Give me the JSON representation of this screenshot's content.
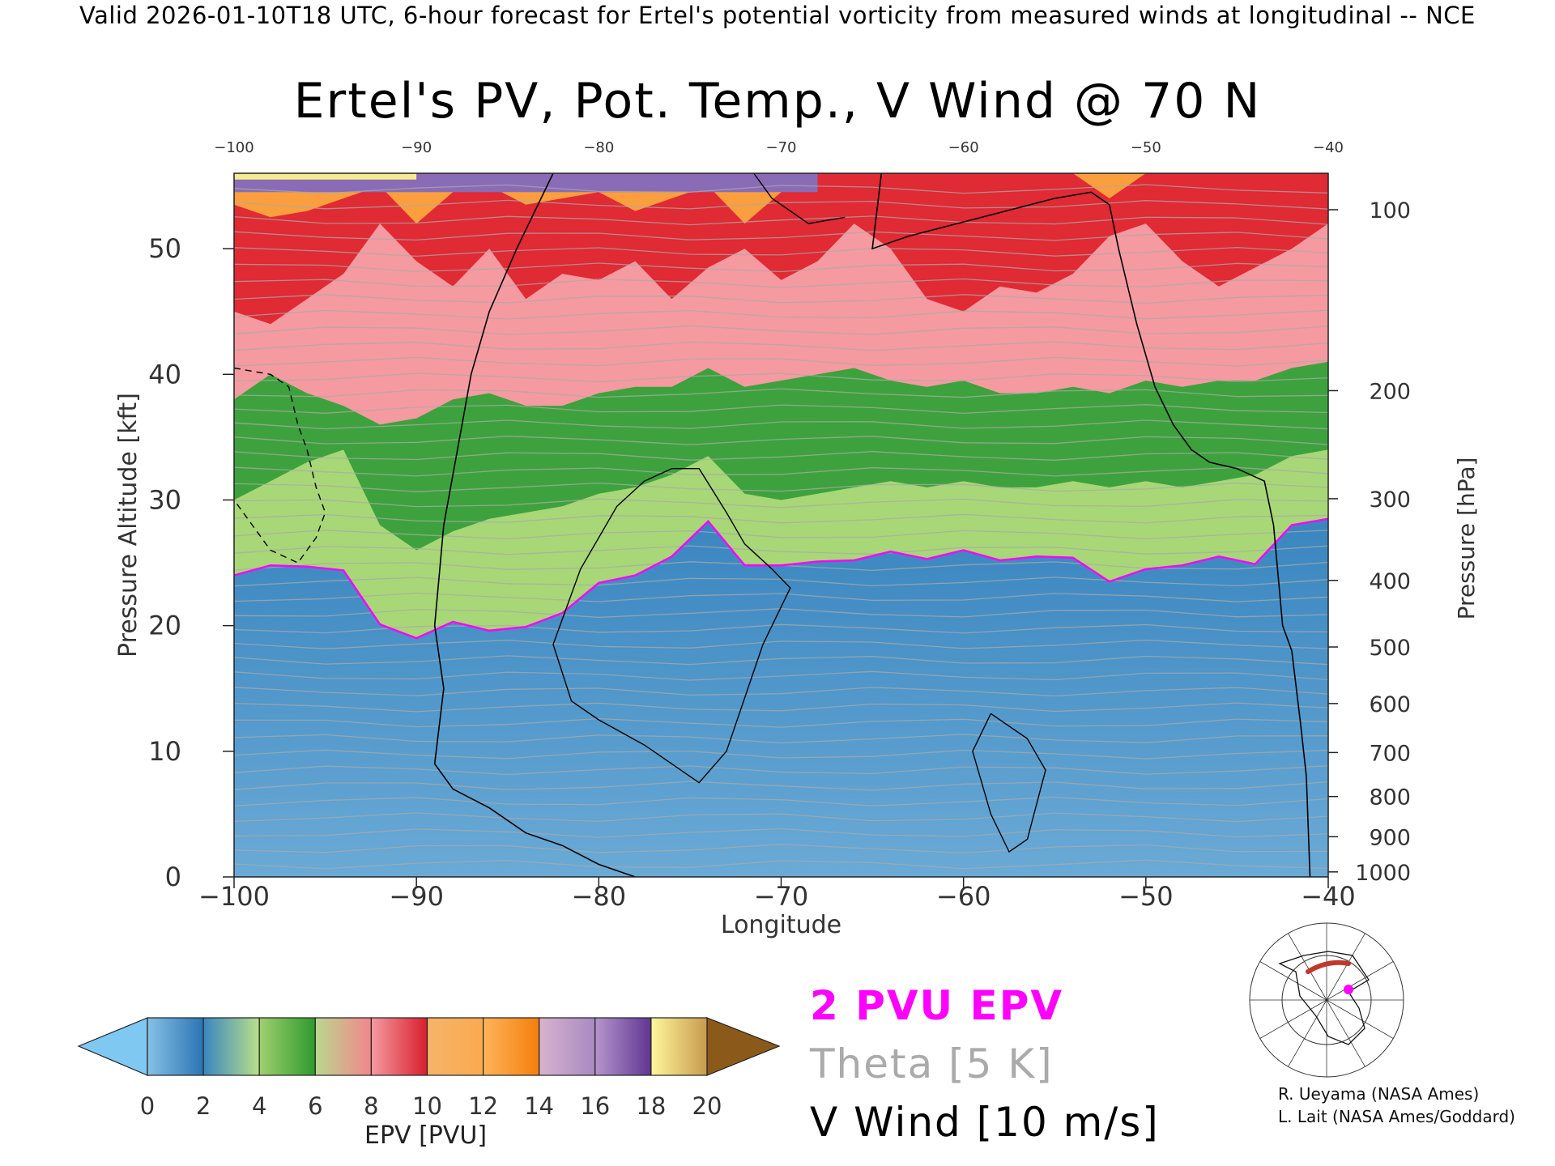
{
  "header": {
    "valid_text": "Valid 2026-01-10T18 UTC, 6-hour forecast for Ertel's potential vorticity from measured winds at longitudinal -- NCE"
  },
  "chart_data": {
    "type": "heatmap",
    "title": "Ertel's PV, Pot. Temp., V Wind @ 70 N",
    "xlabel": "Longitude",
    "ylabel": "Pressure Altitude [kft]",
    "y2label": "Pressure [hPa]",
    "xlim": [
      -100,
      -40
    ],
    "ylim": [
      0,
      56
    ],
    "x_ticks": [
      "−100",
      "−90",
      "−80",
      "−70",
      "−60",
      "−50",
      "−40"
    ],
    "x_tick_values": [
      -100,
      -90,
      -80,
      -70,
      -60,
      -50,
      -40
    ],
    "top_ticks": [
      "−100",
      "−90",
      "−80",
      "−70",
      "−60",
      "−50",
      "−40"
    ],
    "y_ticks": [
      "0",
      "10",
      "20",
      "30",
      "40",
      "50"
    ],
    "y_tick_values": [
      0,
      10,
      20,
      30,
      40,
      50
    ],
    "pressure_ticks": [
      {
        "label": "100",
        "kft": 53.1
      },
      {
        "label": "200",
        "kft": 38.7
      },
      {
        "label": "300",
        "kft": 30.1
      },
      {
        "label": "400",
        "kft": 23.6
      },
      {
        "label": "500",
        "kft": 18.3
      },
      {
        "label": "600",
        "kft": 13.8
      },
      {
        "label": "700",
        "kft": 9.9
      },
      {
        "label": "800",
        "kft": 6.4
      },
      {
        "label": "900",
        "kft": 3.2
      },
      {
        "label": "1000",
        "kft": 0.4
      }
    ],
    "epv_levels_kft": {
      "lon": [
        -100,
        -98,
        -96,
        -94,
        -92,
        -90,
        -88,
        -86,
        -84,
        -82,
        -80,
        -78,
        -76,
        -74,
        -72,
        -70,
        -68,
        -66,
        -64,
        -62,
        -60,
        -58,
        -56,
        -54,
        -52,
        -50,
        -48,
        -46,
        -44,
        -42,
        -40
      ],
      "pvu2": [
        24.0,
        24.8,
        24.7,
        24.4,
        20.1,
        19.0,
        20.3,
        19.6,
        19.9,
        21.0,
        23.4,
        24.0,
        25.5,
        28.3,
        24.8,
        24.8,
        25.1,
        25.2,
        25.9,
        25.3,
        26.0,
        25.2,
        25.5,
        25.4,
        23.5,
        24.5,
        24.8,
        25.5,
        24.9,
        28.0,
        28.5
      ],
      "pvu4": [
        30.0,
        31.5,
        33.0,
        34.0,
        28.0,
        26.0,
        27.5,
        28.5,
        29.0,
        29.5,
        30.5,
        31.0,
        32.0,
        33.5,
        30.5,
        30.0,
        30.5,
        31.0,
        31.5,
        31.0,
        31.5,
        31.0,
        31.0,
        31.5,
        31.0,
        31.5,
        31.0,
        31.5,
        32.0,
        33.5,
        34.0
      ],
      "pvu8": [
        38.0,
        40.0,
        38.5,
        37.5,
        36.0,
        36.5,
        38.0,
        38.5,
        37.5,
        37.5,
        38.5,
        39.0,
        39.0,
        40.5,
        39.0,
        39.5,
        40.0,
        40.5,
        39.5,
        39.0,
        39.5,
        38.5,
        38.5,
        39.0,
        38.5,
        39.5,
        39.0,
        39.5,
        39.5,
        40.5,
        41.0
      ],
      "pvu12": [
        45.0,
        44.0,
        46.0,
        48.0,
        52.0,
        49.0,
        47.0,
        50.0,
        46.0,
        48.0,
        47.5,
        49.0,
        46.0,
        48.5,
        50.0,
        47.5,
        49.0,
        52.0,
        50.0,
        46.0,
        45.0,
        47.0,
        46.5,
        48.0,
        51.0,
        52.0,
        49.0,
        47.0,
        48.5,
        50.0,
        52.0
      ],
      "pvu16": [
        53.5,
        52.5,
        53.0,
        54.0,
        55.0,
        52.0,
        54.5,
        55.0,
        53.5,
        54.0,
        54.5,
        53.0,
        54.0,
        55.0,
        52.0,
        54.5,
        56.0,
        56.0,
        56.0,
        56.0,
        56.0,
        56.0,
        56.0,
        56.0,
        54.0,
        56.0,
        56.0,
        56.0,
        56.0,
        56.0,
        56.0
      ]
    },
    "vwind_zero_contour": {
      "lon": [
        -82.5,
        -84.5,
        -86.0,
        -87.0,
        -87.5,
        -88.0,
        -88.5,
        -89.0,
        -88.5,
        -89.0,
        -88.0,
        -86.0,
        -84.0,
        -82.0,
        -80.0,
        -78.0
      ],
      "kft": [
        56.0,
        50.0,
        45.0,
        40.0,
        36.0,
        32.0,
        28.0,
        20.0,
        15.0,
        9.0,
        7.0,
        5.5,
        3.5,
        2.5,
        1.0,
        0.0
      ]
    },
    "vwind_zero_contour_east": {
      "lon": [
        -64.5,
        -65.0,
        -63.0,
        -55.0,
        -53.0,
        -52.0,
        -51.5,
        -50.5,
        -49.5,
        -48.5,
        -47.5,
        -46.5,
        -45.0,
        -43.5,
        -43.0,
        -42.5,
        -42.0,
        -41.5,
        -41.2,
        -41.0
      ],
      "kft": [
        56.0,
        50.0,
        51.0,
        54.0,
        54.5,
        53.5,
        50.0,
        44.0,
        39.0,
        36.0,
        34.0,
        33.0,
        32.5,
        31.5,
        28.0,
        20.0,
        18.0,
        12.0,
        8.0,
        0.0
      ]
    },
    "vwind_10_contours": [
      {
        "lon": [
          -76.0,
          -74.5,
          -73.0,
          -72.0,
          -70.5,
          -69.5,
          -71.0,
          -73.0,
          -74.5,
          -77.5,
          -80.0,
          -81.5,
          -82.5,
          -81.0,
          -79.0,
          -77.5,
          -76.0
        ],
        "kft": [
          32.5,
          32.5,
          29.0,
          26.5,
          24.5,
          23.0,
          18.5,
          10.0,
          7.5,
          10.5,
          12.5,
          14.0,
          18.5,
          24.5,
          29.5,
          31.5,
          32.5
        ]
      },
      {
        "lon": [
          -71.5,
          -70.5,
          -68.5,
          -66.5
        ],
        "kft": [
          56.0,
          54.0,
          52.0,
          52.5
        ]
      },
      {
        "lon": [
          -58.5,
          -56.5,
          -55.5,
          -56.5,
          -57.5,
          -58.5,
          -59.5,
          -58.5
        ],
        "kft": [
          13.0,
          11.0,
          8.5,
          3.0,
          2.0,
          5.0,
          10.0,
          13.0
        ]
      }
    ],
    "vwind_neg10_contour": {
      "lon": [
        -100.0,
        -98.0,
        -97.0,
        -96.5,
        -96.0,
        -95.5,
        -95.0,
        -95.5,
        -96.5,
        -98.0,
        -99.0,
        -100.0
      ],
      "kft": [
        40.5,
        40.0,
        39.0,
        36.0,
        34.0,
        31.0,
        29.0,
        27.0,
        25.0,
        26.0,
        28.0,
        30.0
      ]
    },
    "colorbar": {
      "label": "EPV [PVU]",
      "ticks": [
        "0",
        "2",
        "4",
        "6",
        "8",
        "10",
        "12",
        "14",
        "16",
        "18",
        "20"
      ],
      "tick_values": [
        0,
        2,
        4,
        6,
        8,
        10,
        12,
        14,
        16,
        18,
        20
      ],
      "under_color": "#7ec8f2",
      "over_color": "#8b5a1a",
      "segments": [
        {
          "from": 0,
          "to": 2,
          "c0": "#86c1e4",
          "c1": "#2b74b3"
        },
        {
          "from": 2,
          "to": 4,
          "c0": "#3a86c0",
          "c1": "#b9e08a"
        },
        {
          "from": 4,
          "to": 6,
          "c0": "#9fd06e",
          "c1": "#2e9a2e"
        },
        {
          "from": 6,
          "to": 8,
          "c0": "#b9d890",
          "c1": "#f3858a"
        },
        {
          "from": 8,
          "to": 10,
          "c0": "#f59aa0",
          "c1": "#d81e2c"
        },
        {
          "from": 10,
          "to": 12,
          "c0": "#f6b46a",
          "c1": "#fba94e"
        },
        {
          "from": 12,
          "to": 14,
          "c0": "#fdb459",
          "c1": "#f47f0c"
        },
        {
          "from": 14,
          "to": 16,
          "c0": "#d8b3ce",
          "c1": "#a889c2"
        },
        {
          "from": 16,
          "to": 18,
          "c0": "#b595cc",
          "c1": "#5f3692"
        },
        {
          "from": 18,
          "to": 20,
          "c0": "#fff79a",
          "c1": "#c79a4e"
        }
      ]
    },
    "fill_colors": {
      "low": "#3a86c0",
      "low_light": "#6aaad6",
      "mid_green": "#3da23d",
      "pink": "#f59aa0",
      "red": "#e02a34",
      "orange": "#fb9e3d",
      "purple": "#8a6bb6",
      "yellow": "#f6ea92"
    }
  },
  "legend": {
    "epv_line": "2 PVU EPV",
    "theta_line": "Theta [5 K]",
    "vwind_line": "V Wind [10 m/s]"
  },
  "credits": {
    "line1": "R. Ueyama (NASA Ames)",
    "line2": "L. Lait (NASA Ames/Goddard)"
  },
  "colors": {
    "epv_contour": "#ff00ff",
    "theta_contour": "#aaaaaa",
    "vwind_contour": "#000000"
  }
}
